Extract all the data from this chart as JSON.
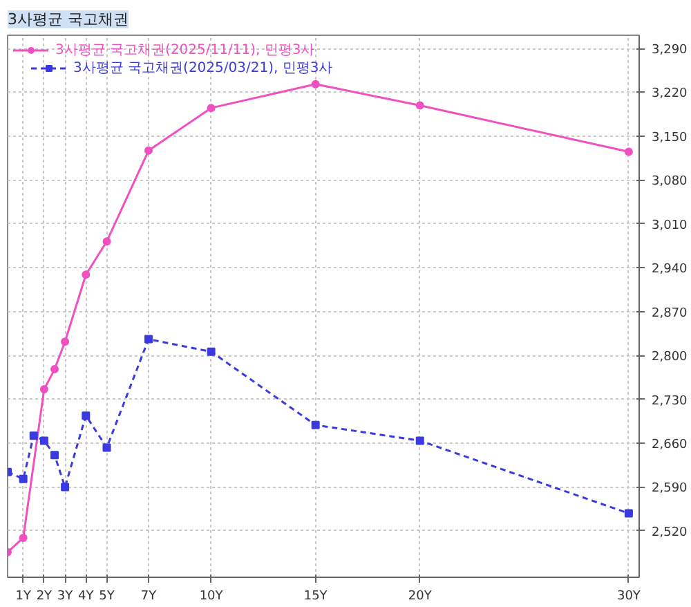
{
  "chart_data": {
    "type": "line",
    "title": "3사평균 국고채권",
    "x": [
      0.25,
      1,
      1.5,
      2,
      2.5,
      3,
      4,
      5,
      7,
      10,
      15,
      20,
      30
    ],
    "series": [
      {
        "name": "3사평균 국고채권(2025/11/11), 민평3사",
        "color": "#f050c0",
        "marker": "circle",
        "line_style": "solid",
        "values": [
          2486,
          2509,
          null,
          2746,
          2778,
          2822,
          2929,
          2982,
          3127,
          3195,
          3233,
          3199,
          3125
        ]
      },
      {
        "name": "3사평균 국고채권(2025/03/21), 민평3사",
        "color": "#3a3ae0",
        "marker": "square",
        "line_style": "dashed",
        "values": [
          2614,
          2603,
          2672,
          2664,
          2641,
          2590,
          2704,
          2653,
          2826,
          2806,
          2689,
          2664,
          2548
        ]
      }
    ],
    "xlim": [
      0.25,
      30.5
    ],
    "xticks": [
      {
        "value": 1,
        "label": "1Y"
      },
      {
        "value": 2,
        "label": "2Y"
      },
      {
        "value": 3,
        "label": "3Y"
      },
      {
        "value": 4,
        "label": "4Y"
      },
      {
        "value": 5,
        "label": "5Y"
      },
      {
        "value": 7,
        "label": "7Y"
      },
      {
        "value": 10,
        "label": "10Y"
      },
      {
        "value": 15,
        "label": "15Y"
      },
      {
        "value": 20,
        "label": "20Y"
      },
      {
        "value": 30,
        "label": "30Y"
      }
    ],
    "ylim": [
      2446,
      3311
    ],
    "yticks": [
      {
        "value": 2520,
        "label": "2,520"
      },
      {
        "value": 2590,
        "label": "2,590"
      },
      {
        "value": 2660,
        "label": "2,660"
      },
      {
        "value": 2730,
        "label": "2,730"
      },
      {
        "value": 2800,
        "label": "2,800"
      },
      {
        "value": 2870,
        "label": "2,870"
      },
      {
        "value": 2940,
        "label": "2,940"
      },
      {
        "value": 3010,
        "label": "3,010"
      },
      {
        "value": 3080,
        "label": "3,080"
      },
      {
        "value": 3150,
        "label": "3,150"
      },
      {
        "value": 3220,
        "label": "3,220"
      },
      {
        "value": 3290,
        "label": "3,290"
      }
    ],
    "grid": true,
    "legend": "top left"
  }
}
